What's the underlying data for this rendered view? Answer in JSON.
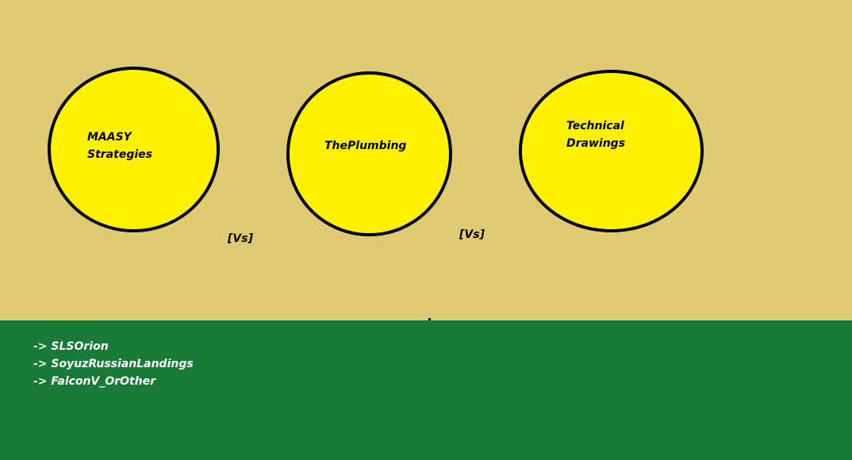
{
  "colors": {
    "background_top": "#e1cb72",
    "background_bottom": "#177a37",
    "circle_fill": "#fff200",
    "circle_stroke": "#000000",
    "list_text": "#ffffff"
  },
  "nodes": [
    {
      "line1": "MAASY",
      "line2": "Strategies"
    },
    {
      "line1": "ThePlumbing",
      "line2": ""
    },
    {
      "line1": "Technical",
      "line2": "Drawings"
    }
  ],
  "versus": [
    {
      "label": "[Vs]"
    },
    {
      "label": "[Vs]"
    }
  ],
  "list": [
    {
      "arrow": "->",
      "text": "SLSOrion"
    },
    {
      "arrow": "->",
      "text": "SoyuzRussianLandings"
    },
    {
      "arrow": "->",
      "text": "FalconV_OrOther"
    }
  ]
}
